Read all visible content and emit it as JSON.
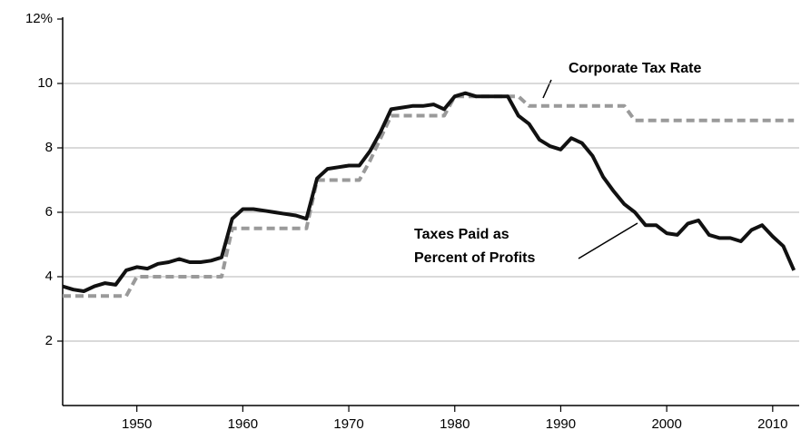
{
  "chart_data": {
    "type": "line",
    "x": [
      1943,
      1944,
      1945,
      1946,
      1947,
      1948,
      1949,
      1950,
      1951,
      1952,
      1953,
      1954,
      1955,
      1956,
      1957,
      1958,
      1959,
      1960,
      1961,
      1962,
      1963,
      1964,
      1965,
      1966,
      1967,
      1968,
      1969,
      1970,
      1971,
      1972,
      1973,
      1974,
      1975,
      1976,
      1977,
      1978,
      1979,
      1980,
      1981,
      1982,
      1983,
      1984,
      1985,
      1986,
      1987,
      1988,
      1989,
      1990,
      1991,
      1992,
      1993,
      1994,
      1995,
      1996,
      1997,
      1998,
      1999,
      2000,
      2001,
      2002,
      2003,
      2004,
      2005,
      2006,
      2007,
      2008,
      2009,
      2010,
      2011,
      2012
    ],
    "series": [
      {
        "color": "#9a9a9a",
        "dashed": true,
        "values": [
          3.4,
          3.4,
          3.4,
          3.4,
          3.4,
          3.4,
          3.4,
          4.0,
          4.0,
          4.0,
          4.0,
          4.0,
          4.0,
          4.0,
          4.0,
          4.0,
          5.5,
          5.5,
          5.5,
          5.5,
          5.5,
          5.5,
          5.5,
          5.5,
          7.0,
          7.0,
          7.0,
          7.0,
          7.0,
          7.6,
          8.3,
          9.0,
          9.0,
          9.0,
          9.0,
          9.0,
          9.0,
          9.6,
          9.6,
          9.6,
          9.6,
          9.6,
          9.6,
          9.6,
          9.3,
          9.3,
          9.3,
          9.3,
          9.3,
          9.3,
          9.3,
          9.3,
          9.3,
          9.3,
          8.85,
          8.85,
          8.85,
          8.85,
          8.85,
          8.85,
          8.85,
          8.85,
          8.85,
          8.85,
          8.85,
          8.85,
          8.85,
          8.85,
          8.85,
          8.85
        ]
      },
      {
        "color": "#111111",
        "dashed": false,
        "values": [
          3.7,
          3.6,
          3.55,
          3.7,
          3.8,
          3.75,
          4.2,
          4.3,
          4.25,
          4.4,
          4.45,
          4.55,
          4.45,
          4.45,
          4.5,
          4.6,
          5.8,
          6.1,
          6.1,
          6.05,
          6.0,
          5.95,
          5.9,
          5.8,
          7.05,
          7.35,
          7.4,
          7.45,
          7.45,
          7.9,
          8.5,
          9.2,
          9.25,
          9.3,
          9.3,
          9.35,
          9.2,
          9.6,
          9.7,
          9.6,
          9.6,
          9.6,
          9.6,
          9.0,
          8.75,
          8.25,
          8.05,
          7.95,
          8.3,
          8.15,
          7.75,
          7.1,
          6.65,
          6.25,
          6.0,
          5.6,
          5.6,
          5.35,
          5.3,
          5.65,
          5.75,
          5.3,
          5.2,
          5.2,
          5.1,
          5.45,
          5.6,
          5.25,
          4.95,
          4.2
        ]
      }
    ],
    "annotations": [
      "Corporate Tax Rate",
      "Taxes Paid as",
      "Percent of Profits"
    ],
    "xlim": [
      1943,
      2012.5
    ],
    "xticks": [
      1950,
      1960,
      1970,
      1980,
      1990,
      2000,
      2010
    ],
    "ylim": [
      0,
      12
    ],
    "yticks": [
      {
        "value": 12,
        "label": "12%"
      },
      10,
      8,
      6,
      4,
      2
    ],
    "grid": true
  }
}
